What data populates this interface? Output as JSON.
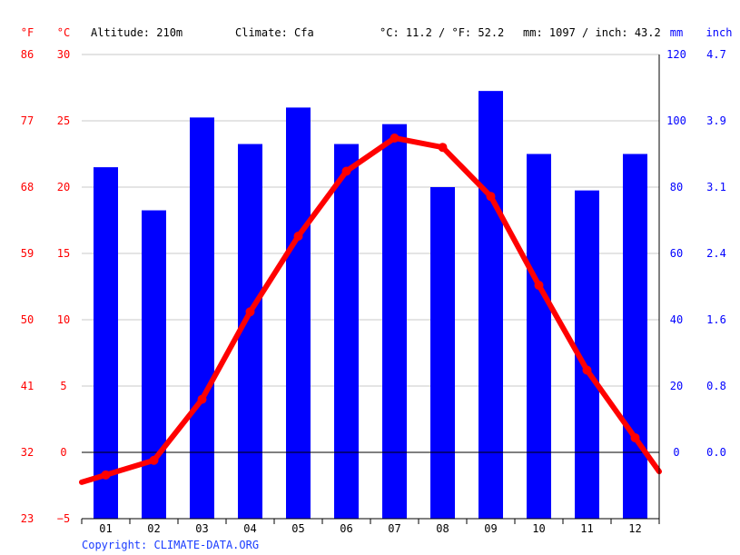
{
  "header": {
    "unit_f": "°F",
    "unit_c": "°C",
    "altitude": "Altitude: 210m",
    "climate": "Climate: Cfa",
    "temp_avg": "°C: 11.2 / °F: 52.2",
    "precip_total": "mm: 1097 / inch: 43.2",
    "unit_mm": "mm",
    "unit_inch": "inch"
  },
  "footer": {
    "copyright": "Copyright: CLIMATE-DATA.ORG"
  },
  "chart_data": {
    "type": "bar+line",
    "categories": [
      "01",
      "02",
      "03",
      "04",
      "05",
      "06",
      "07",
      "08",
      "09",
      "10",
      "11",
      "12"
    ],
    "series": [
      {
        "kind": "bar",
        "values": [
          86,
          73,
          101,
          93,
          104,
          93,
          99,
          80,
          109,
          90,
          79,
          90
        ],
        "axis": "mm"
      },
      {
        "kind": "line",
        "values": [
          -1.7,
          -0.6,
          4.0,
          10.6,
          16.3,
          21.2,
          23.7,
          23.0,
          19.3,
          12.6,
          6.2,
          1.1
        ],
        "axis": "celsius"
      }
    ],
    "axes": {
      "celsius": {
        "ticks": [
          -5,
          0,
          5,
          10,
          15,
          20,
          25,
          30
        ],
        "labels": [
          "−5",
          "0",
          "5",
          "10",
          "15",
          "20",
          "25",
          "30"
        ],
        "range": [
          -5,
          30
        ]
      },
      "fahrenheit": {
        "labels": [
          "23",
          "32",
          "41",
          "50",
          "59",
          "68",
          "77",
          "86"
        ]
      },
      "mm": {
        "ticks": [
          0,
          20,
          40,
          60,
          80,
          100,
          120
        ],
        "labels": [
          "0",
          "20",
          "40",
          "60",
          "80",
          "100",
          "120"
        ],
        "range": [
          -20,
          120
        ]
      },
      "inch": {
        "labels": [
          "0.0",
          "0.8",
          "1.6",
          "2.4",
          "3.1",
          "3.9",
          "4.7"
        ]
      }
    },
    "grid": true,
    "colors": {
      "bar": "#0000ff",
      "line": "#ff0000",
      "grid": "#c8c8c8",
      "zero_line": "#000000",
      "temp_axis": "#ff0000",
      "precip_axis": "#0000ff"
    }
  }
}
